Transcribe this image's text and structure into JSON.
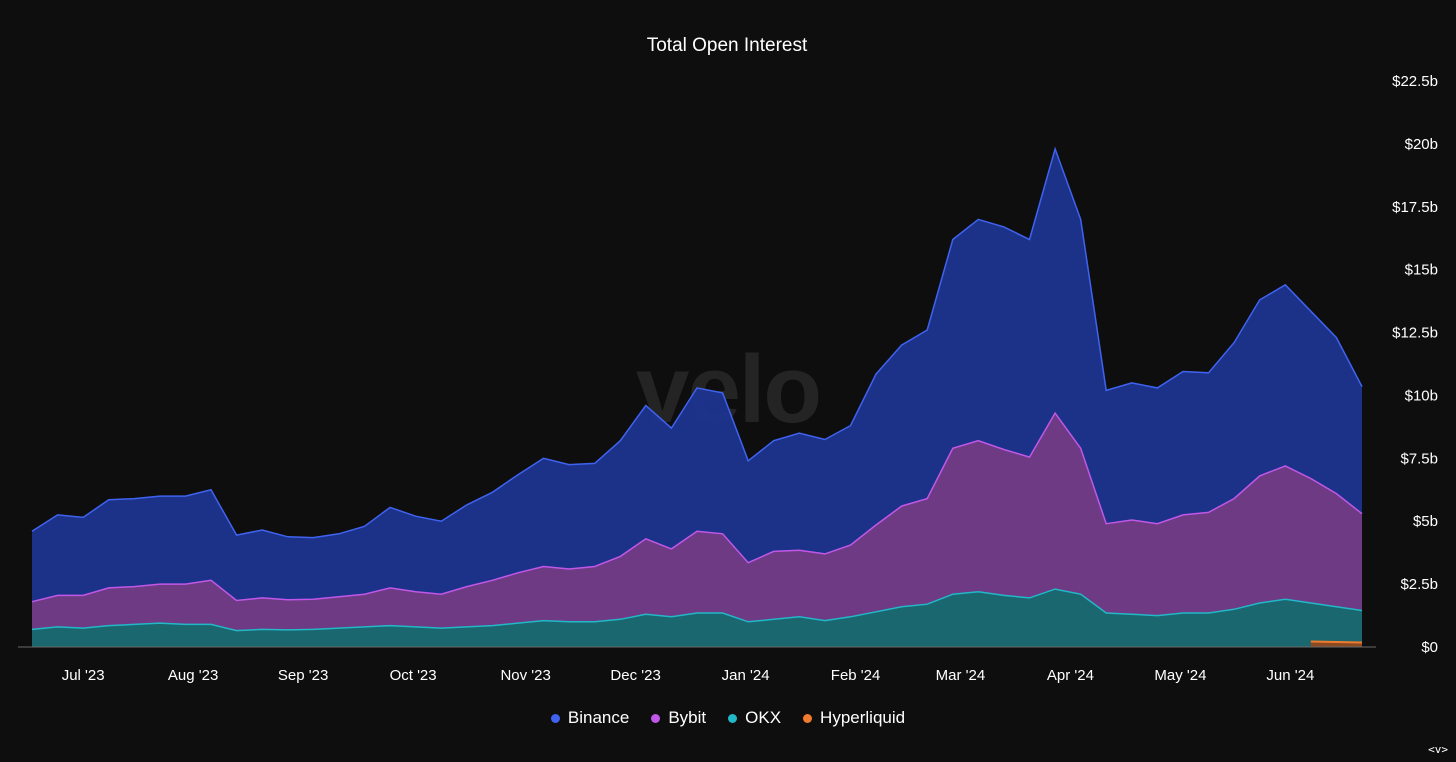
{
  "chart_data": {
    "type": "area",
    "stacked": true,
    "title": "Total Open Interest",
    "watermark": "velo",
    "xlabel": "",
    "ylabel": "",
    "ylim": [
      0,
      22.5
    ],
    "y_unit": "billion USD",
    "y_ticks": [
      {
        "value": 0,
        "label": "$0"
      },
      {
        "value": 2.5,
        "label": "$2.5b"
      },
      {
        "value": 5,
        "label": "$5b"
      },
      {
        "value": 7.5,
        "label": "$7.5b"
      },
      {
        "value": 10,
        "label": "$10b"
      },
      {
        "value": 12.5,
        "label": "$12.5b"
      },
      {
        "value": 15,
        "label": "$15b"
      },
      {
        "value": 17.5,
        "label": "$17.5b"
      },
      {
        "value": 20,
        "label": "$20b"
      },
      {
        "value": 22.5,
        "label": "$22.5b"
      }
    ],
    "x_ticks": [
      {
        "index": 2,
        "label": "Jul '23"
      },
      {
        "index": 6.3,
        "label": "Aug '23"
      },
      {
        "index": 10.6,
        "label": "Sep '23"
      },
      {
        "index": 14.9,
        "label": "Oct '23"
      },
      {
        "index": 19.3,
        "label": "Nov '23"
      },
      {
        "index": 23.6,
        "label": "Dec '23"
      },
      {
        "index": 27.9,
        "label": "Jan '24"
      },
      {
        "index": 32.2,
        "label": "Feb '24"
      },
      {
        "index": 36.3,
        "label": "Mar '24"
      },
      {
        "index": 40.6,
        "label": "Apr '24"
      },
      {
        "index": 44.9,
        "label": "May '24"
      },
      {
        "index": 49.2,
        "label": "Jun '24"
      }
    ],
    "series": [
      {
        "name": "OKX",
        "color": "#22b8c8",
        "fill": "#1b6d75",
        "values": [
          0.7,
          0.8,
          0.75,
          0.85,
          0.9,
          0.95,
          0.9,
          0.9,
          0.65,
          0.7,
          0.68,
          0.7,
          0.75,
          0.8,
          0.85,
          0.8,
          0.75,
          0.8,
          0.85,
          0.95,
          1.05,
          1.0,
          1.0,
          1.1,
          1.3,
          1.2,
          1.35,
          1.35,
          1.0,
          1.1,
          1.2,
          1.05,
          1.2,
          1.4,
          1.6,
          1.7,
          2.1,
          2.2,
          2.05,
          1.95,
          2.3,
          2.1,
          1.35,
          1.3,
          1.25,
          1.35,
          1.35,
          1.5,
          1.75,
          1.9,
          1.75,
          1.6,
          1.45
        ]
      },
      {
        "name": "Bybit",
        "color": "#c157e8",
        "fill": "#743d8b",
        "values": [
          1.1,
          1.25,
          1.3,
          1.5,
          1.5,
          1.55,
          1.6,
          1.75,
          1.2,
          1.25,
          1.2,
          1.2,
          1.25,
          1.3,
          1.5,
          1.4,
          1.35,
          1.6,
          1.8,
          2.0,
          2.15,
          2.1,
          2.2,
          2.5,
          3.0,
          2.7,
          3.25,
          3.15,
          2.35,
          2.7,
          2.65,
          2.65,
          2.85,
          3.45,
          4.0,
          4.2,
          5.8,
          6.0,
          5.8,
          5.6,
          7.0,
          5.8,
          3.55,
          3.75,
          3.65,
          3.9,
          4.0,
          4.4,
          5.05,
          5.3,
          4.95,
          4.5,
          3.85
        ]
      },
      {
        "name": "Binance",
        "color": "#3f63f0",
        "fill": "#1e3590",
        "values": [
          2.8,
          3.2,
          3.1,
          3.5,
          3.5,
          3.5,
          3.5,
          3.6,
          2.6,
          2.7,
          2.5,
          2.45,
          2.5,
          2.7,
          3.2,
          3.0,
          2.9,
          3.25,
          3.5,
          3.9,
          4.3,
          4.15,
          4.1,
          4.6,
          5.3,
          4.8,
          5.7,
          5.6,
          4.05,
          4.4,
          4.65,
          4.55,
          4.75,
          6.0,
          6.4,
          6.7,
          8.3,
          8.8,
          8.85,
          8.65,
          10.5,
          9.1,
          5.3,
          5.45,
          5.4,
          5.7,
          5.55,
          6.2,
          7.0,
          7.2,
          6.65,
          6.2,
          5.05
        ]
      },
      {
        "name": "Hyperliquid",
        "color": "#f07b2f",
        "fill": "#8a4a22",
        "values": [
          null,
          null,
          null,
          null,
          null,
          null,
          null,
          null,
          null,
          null,
          null,
          null,
          null,
          null,
          null,
          null,
          null,
          null,
          null,
          null,
          null,
          null,
          null,
          null,
          null,
          null,
          null,
          null,
          null,
          null,
          null,
          null,
          null,
          null,
          null,
          null,
          null,
          null,
          null,
          null,
          null,
          null,
          null,
          null,
          null,
          null,
          null,
          null,
          null,
          null,
          0.22,
          0.2,
          0.18
        ]
      }
    ],
    "legend": [
      {
        "name": "Binance",
        "color": "#3f63f0"
      },
      {
        "name": "Bybit",
        "color": "#c157e8"
      },
      {
        "name": "OKX",
        "color": "#22b8c8"
      },
      {
        "name": "Hyperliquid",
        "color": "#f07b2f"
      }
    ],
    "legend_position": "bottom-center"
  },
  "footer": {
    "corner_label": "<v>"
  }
}
